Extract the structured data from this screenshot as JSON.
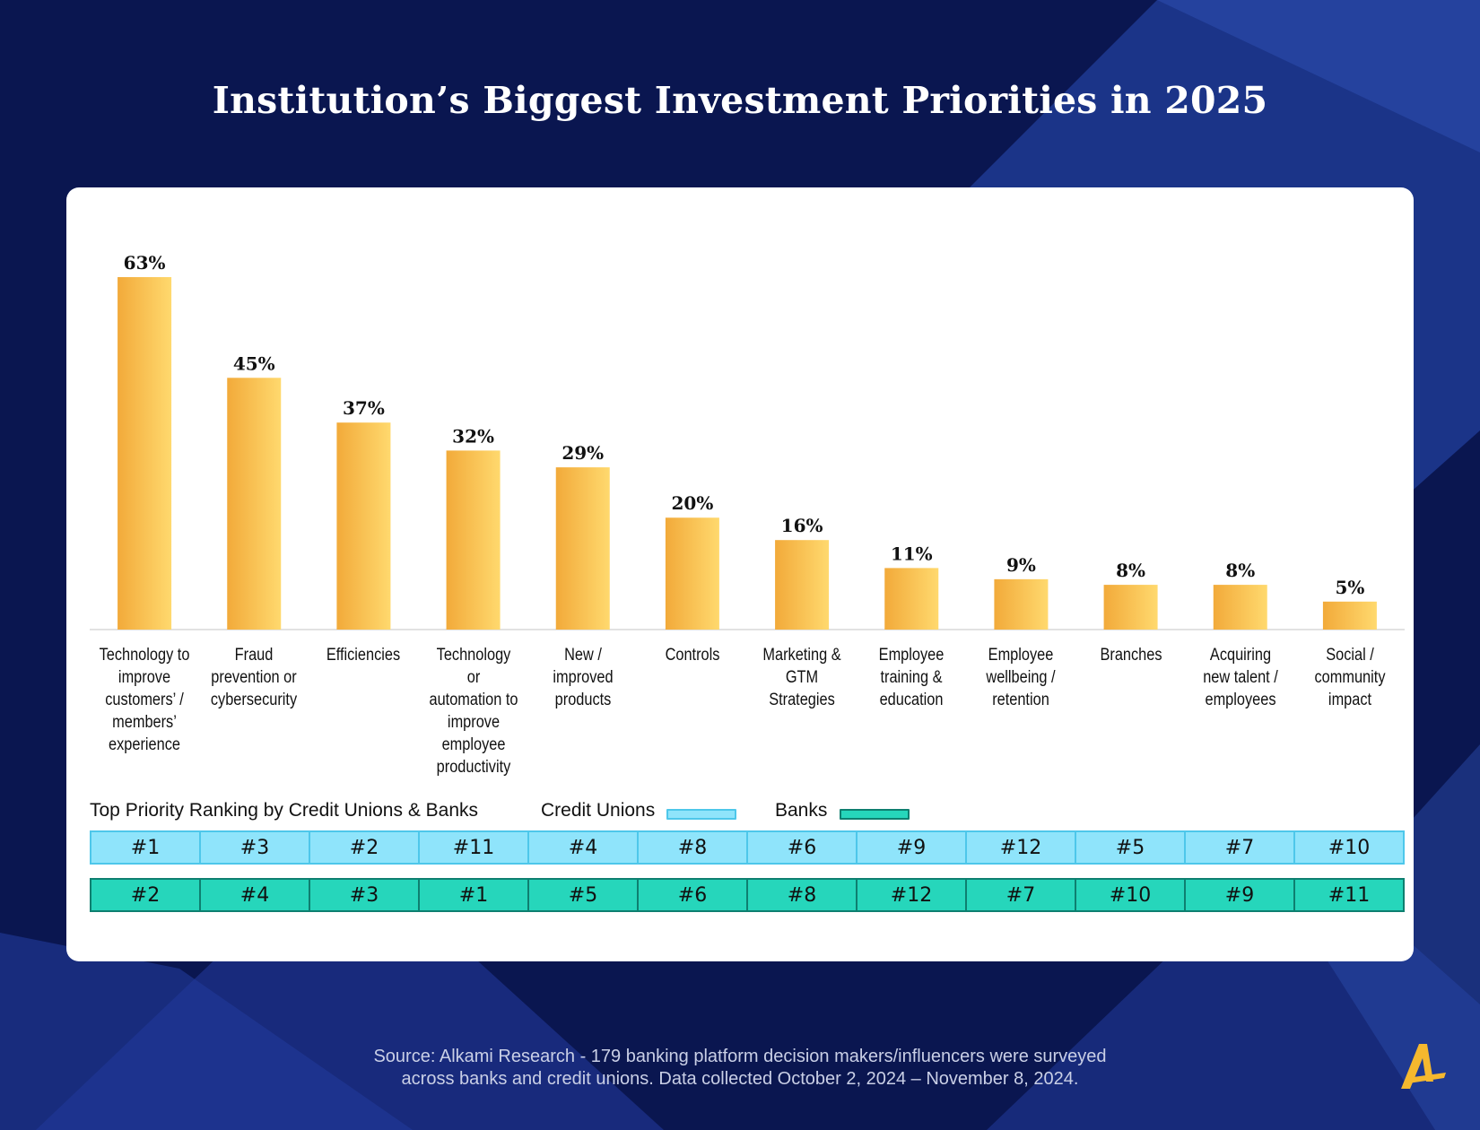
{
  "title": "Institution’s Biggest Investment Priorities in 2025",
  "colors": {
    "background": "#0a1650",
    "bar_start": "#f2aa3a",
    "bar_end": "#ffd96e",
    "credit_unions": "#8fe4fb",
    "banks": "#26d6bb",
    "logo": "#f5b82e"
  },
  "chart_data": {
    "type": "bar",
    "title": "Institution’s Biggest Investment Priorities in 2025",
    "categories": [
      "Technology to improve customers’ / members’ experience",
      "Fraud prevention or cybersecurity",
      "Efficiencies",
      "Technology or automation to improve employee productivity",
      "New / improved products",
      "Controls",
      "Marketing & GTM Strategies",
      "Employee training & education",
      "Employee wellbeing / retention",
      "Branches",
      "Acquiring new talent / employees",
      "Social / community impact"
    ],
    "values": [
      63,
      45,
      37,
      32,
      29,
      20,
      16,
      11,
      9,
      8,
      8,
      5
    ],
    "value_labels": [
      "63%",
      "45%",
      "37%",
      "32%",
      "29%",
      "20%",
      "16%",
      "11%",
      "9%",
      "8%",
      "8%",
      "5%"
    ],
    "ylim": [
      0,
      63
    ],
    "xlabel": "",
    "ylabel": "",
    "grid": false
  },
  "category_label_lines": [
    [
      "Technology to",
      "improve",
      "customers’ /",
      "members’",
      "experience"
    ],
    [
      "Fraud",
      "prevention or",
      "cybersecurity"
    ],
    [
      "Efficiencies"
    ],
    [
      "Technology or",
      "automation to",
      "improve",
      "employee",
      "productivity"
    ],
    [
      "New /",
      "improved",
      "products"
    ],
    [
      "Controls"
    ],
    [
      "Marketing &",
      "GTM",
      "Strategies"
    ],
    [
      "Employee",
      "training &",
      "education"
    ],
    [
      "Employee",
      "wellbeing /",
      "retention"
    ],
    [
      "Branches"
    ],
    [
      "Acquiring",
      "new talent /",
      "employees"
    ],
    [
      "Social /",
      "community",
      "impact"
    ]
  ],
  "ranking": {
    "header": "Top Priority Ranking by Credit Unions & Banks",
    "credit_unions_label": "Credit Unions",
    "banks_label": "Banks",
    "credit_unions": [
      "#1",
      "#3",
      "#2",
      "#11",
      "#4",
      "#8",
      "#6",
      "#9",
      "#12",
      "#5",
      "#7",
      "#10"
    ],
    "banks": [
      "#2",
      "#4",
      "#3",
      "#1",
      "#5",
      "#6",
      "#8",
      "#12",
      "#7",
      "#10",
      "#9",
      "#11"
    ]
  },
  "source": {
    "line1": "Source: Alkami Research -  179 banking platform decision makers/influencers were surveyed",
    "line2": "across banks and credit unions. Data collected October 2, 2024 – November 8, 2024."
  },
  "logo_icon": "alkami-a-logo-icon"
}
